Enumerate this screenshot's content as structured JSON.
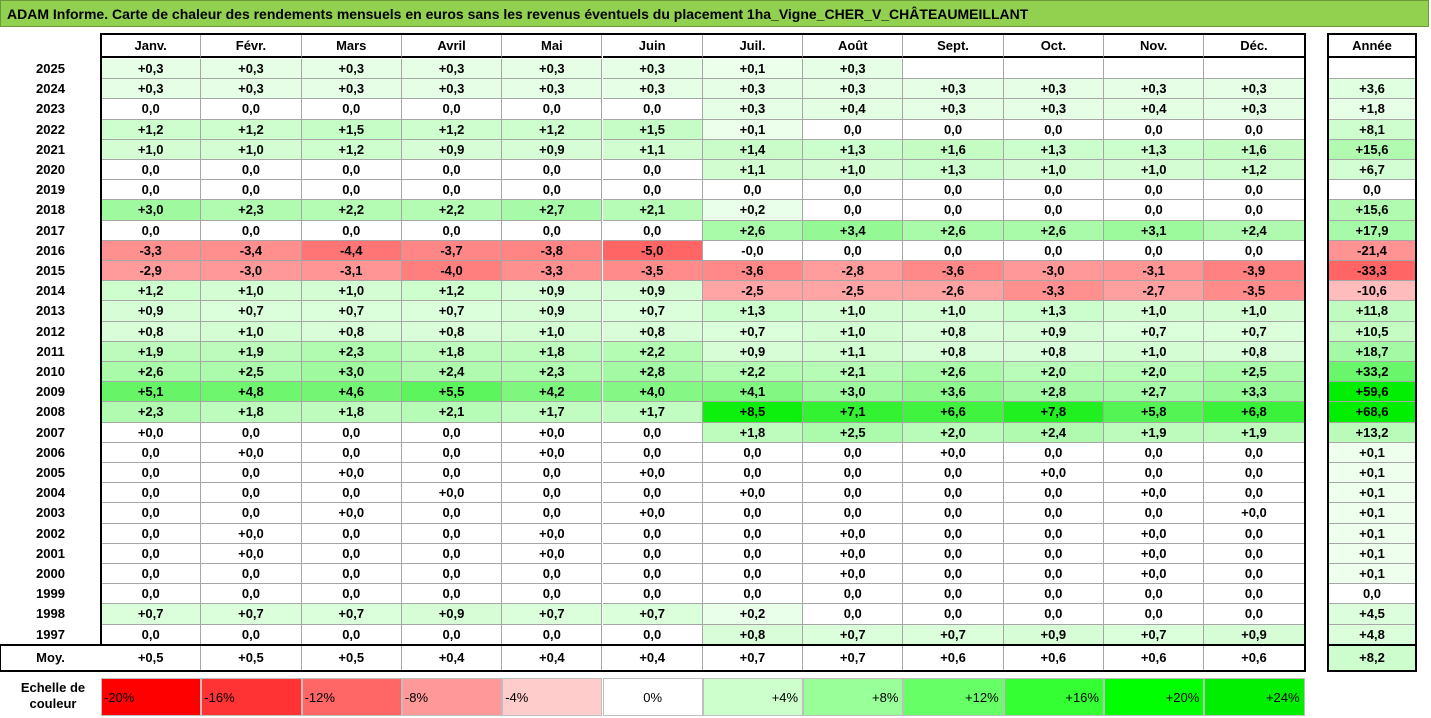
{
  "title": "ADAM Informe. Carte de chaleur des rendements mensuels en euros sans les revenus éventuels du placement 1ha_Vigne_CHER_V_CHÂTEAUMEILLANT",
  "chart_data": {
    "type": "heatmap",
    "columns": [
      "Janv.",
      "Févr.",
      "Mars",
      "Avril",
      "Mai",
      "Juin",
      "Juil.",
      "Août",
      "Sept.",
      "Oct.",
      "Nov.",
      "Déc."
    ],
    "annual_header": "Année",
    "rows": [
      {
        "year": "2025",
        "months": [
          "+0,3",
          "+0,3",
          "+0,3",
          "+0,3",
          "+0,3",
          "+0,3",
          "+0,1",
          "+0,3",
          "",
          "",
          "",
          ""
        ],
        "annual": ""
      },
      {
        "year": "2024",
        "months": [
          "+0,3",
          "+0,3",
          "+0,3",
          "+0,3",
          "+0,3",
          "+0,3",
          "+0,3",
          "+0,3",
          "+0,3",
          "+0,3",
          "+0,3",
          "+0,3"
        ],
        "annual": "+3,6"
      },
      {
        "year": "2023",
        "months": [
          "0,0",
          "0,0",
          "0,0",
          "0,0",
          "0,0",
          "0,0",
          "+0,3",
          "+0,4",
          "+0,3",
          "+0,3",
          "+0,4",
          "+0,3"
        ],
        "annual": "+1,8"
      },
      {
        "year": "2022",
        "months": [
          "+1,2",
          "+1,2",
          "+1,5",
          "+1,2",
          "+1,2",
          "+1,5",
          "+0,1",
          "0,0",
          "0,0",
          "0,0",
          "0,0",
          "0,0"
        ],
        "annual": "+8,1"
      },
      {
        "year": "2021",
        "months": [
          "+1,0",
          "+1,0",
          "+1,2",
          "+0,9",
          "+0,9",
          "+1,1",
          "+1,4",
          "+1,3",
          "+1,6",
          "+1,3",
          "+1,3",
          "+1,6"
        ],
        "annual": "+15,6"
      },
      {
        "year": "2020",
        "months": [
          "0,0",
          "0,0",
          "0,0",
          "0,0",
          "0,0",
          "0,0",
          "+1,1",
          "+1,0",
          "+1,3",
          "+1,0",
          "+1,0",
          "+1,2"
        ],
        "annual": "+6,7"
      },
      {
        "year": "2019",
        "months": [
          "0,0",
          "0,0",
          "0,0",
          "0,0",
          "0,0",
          "0,0",
          "0,0",
          "0,0",
          "0,0",
          "0,0",
          "0,0",
          "0,0"
        ],
        "annual": "0,0"
      },
      {
        "year": "2018",
        "months": [
          "+3,0",
          "+2,3",
          "+2,2",
          "+2,2",
          "+2,7",
          "+2,1",
          "+0,2",
          "0,0",
          "0,0",
          "0,0",
          "0,0",
          "0,0"
        ],
        "annual": "+15,6"
      },
      {
        "year": "2017",
        "months": [
          "0,0",
          "0,0",
          "0,0",
          "0,0",
          "0,0",
          "0,0",
          "+2,6",
          "+3,4",
          "+2,6",
          "+2,6",
          "+3,1",
          "+2,4"
        ],
        "annual": "+17,9"
      },
      {
        "year": "2016",
        "months": [
          "-3,3",
          "-3,4",
          "-4,4",
          "-3,7",
          "-3,8",
          "-5,0",
          "-0,0",
          "0,0",
          "0,0",
          "0,0",
          "0,0",
          "0,0"
        ],
        "annual": "-21,4"
      },
      {
        "year": "2015",
        "months": [
          "-2,9",
          "-3,0",
          "-3,1",
          "-4,0",
          "-3,3",
          "-3,5",
          "-3,6",
          "-2,8",
          "-3,6",
          "-3,0",
          "-3,1",
          "-3,9"
        ],
        "annual": "-33,3"
      },
      {
        "year": "2014",
        "months": [
          "+1,2",
          "+1,0",
          "+1,0",
          "+1,2",
          "+0,9",
          "+0,9",
          "-2,5",
          "-2,5",
          "-2,6",
          "-3,3",
          "-2,7",
          "-3,5"
        ],
        "annual": "-10,6"
      },
      {
        "year": "2013",
        "months": [
          "+0,9",
          "+0,7",
          "+0,7",
          "+0,7",
          "+0,9",
          "+0,7",
          "+1,3",
          "+1,0",
          "+1,0",
          "+1,3",
          "+1,0",
          "+1,0"
        ],
        "annual": "+11,8"
      },
      {
        "year": "2012",
        "months": [
          "+0,8",
          "+1,0",
          "+0,8",
          "+0,8",
          "+1,0",
          "+0,8",
          "+0,7",
          "+1,0",
          "+0,8",
          "+0,9",
          "+0,7",
          "+0,7"
        ],
        "annual": "+10,5"
      },
      {
        "year": "2011",
        "months": [
          "+1,9",
          "+1,9",
          "+2,3",
          "+1,8",
          "+1,8",
          "+2,2",
          "+0,9",
          "+1,1",
          "+0,8",
          "+0,8",
          "+1,0",
          "+0,8"
        ],
        "annual": "+18,7"
      },
      {
        "year": "2010",
        "months": [
          "+2,6",
          "+2,5",
          "+3,0",
          "+2,4",
          "+2,3",
          "+2,8",
          "+2,2",
          "+2,1",
          "+2,6",
          "+2,0",
          "+2,0",
          "+2,5"
        ],
        "annual": "+33,2"
      },
      {
        "year": "2009",
        "months": [
          "+5,1",
          "+4,8",
          "+4,6",
          "+5,5",
          "+4,2",
          "+4,0",
          "+4,1",
          "+3,0",
          "+3,6",
          "+2,8",
          "+2,7",
          "+3,3"
        ],
        "annual": "+59,6"
      },
      {
        "year": "2008",
        "months": [
          "+2,3",
          "+1,8",
          "+1,8",
          "+2,1",
          "+1,7",
          "+1,7",
          "+8,5",
          "+7,1",
          "+6,6",
          "+7,8",
          "+5,8",
          "+6,8"
        ],
        "annual": "+68,6"
      },
      {
        "year": "2007",
        "months": [
          "+0,0",
          "0,0",
          "0,0",
          "0,0",
          "+0,0",
          "0,0",
          "+1,8",
          "+2,5",
          "+2,0",
          "+2,4",
          "+1,9",
          "+1,9"
        ],
        "annual": "+13,2"
      },
      {
        "year": "2006",
        "months": [
          "0,0",
          "+0,0",
          "0,0",
          "0,0",
          "+0,0",
          "0,0",
          "0,0",
          "0,0",
          "+0,0",
          "0,0",
          "0,0",
          "0,0"
        ],
        "annual": "+0,1"
      },
      {
        "year": "2005",
        "months": [
          "0,0",
          "0,0",
          "+0,0",
          "0,0",
          "0,0",
          "+0,0",
          "0,0",
          "0,0",
          "0,0",
          "+0,0",
          "0,0",
          "0,0"
        ],
        "annual": "+0,1"
      },
      {
        "year": "2004",
        "months": [
          "0,0",
          "0,0",
          "0,0",
          "+0,0",
          "0,0",
          "0,0",
          "+0,0",
          "0,0",
          "0,0",
          "0,0",
          "+0,0",
          "0,0"
        ],
        "annual": "+0,1"
      },
      {
        "year": "2003",
        "months": [
          "0,0",
          "0,0",
          "+0,0",
          "0,0",
          "0,0",
          "+0,0",
          "0,0",
          "0,0",
          "0,0",
          "0,0",
          "0,0",
          "+0,0"
        ],
        "annual": "+0,1"
      },
      {
        "year": "2002",
        "months": [
          "0,0",
          "+0,0",
          "0,0",
          "0,0",
          "+0,0",
          "0,0",
          "0,0",
          "+0,0",
          "0,0",
          "0,0",
          "+0,0",
          "0,0"
        ],
        "annual": "+0,1"
      },
      {
        "year": "2001",
        "months": [
          "0,0",
          "+0,0",
          "0,0",
          "0,0",
          "+0,0",
          "0,0",
          "0,0",
          "+0,0",
          "0,0",
          "0,0",
          "+0,0",
          "0,0"
        ],
        "annual": "+0,1"
      },
      {
        "year": "2000",
        "months": [
          "0,0",
          "0,0",
          "0,0",
          "0,0",
          "0,0",
          "0,0",
          "0,0",
          "+0,0",
          "0,0",
          "0,0",
          "+0,0",
          "0,0"
        ],
        "annual": "+0,1"
      },
      {
        "year": "1999",
        "months": [
          "0,0",
          "0,0",
          "0,0",
          "0,0",
          "0,0",
          "0,0",
          "0,0",
          "0,0",
          "0,0",
          "0,0",
          "0,0",
          "0,0"
        ],
        "annual": "0,0"
      },
      {
        "year": "1998",
        "months": [
          "+0,7",
          "+0,7",
          "+0,7",
          "+0,9",
          "+0,7",
          "+0,7",
          "+0,2",
          "0,0",
          "0,0",
          "0,0",
          "0,0",
          "0,0"
        ],
        "annual": "+4,5"
      },
      {
        "year": "1997",
        "months": [
          "0,0",
          "0,0",
          "0,0",
          "0,0",
          "0,0",
          "0,0",
          "+0,8",
          "+0,7",
          "+0,7",
          "+0,9",
          "+0,7",
          "+0,9"
        ],
        "annual": "+4,8"
      }
    ],
    "average": {
      "label": "Moy.",
      "months": [
        "+0,5",
        "+0,5",
        "+0,5",
        "+0,4",
        "+0,4",
        "+0,4",
        "+0,7",
        "+0,7",
        "+0,6",
        "+0,6",
        "+0,6",
        "+0,6"
      ],
      "annual": "+8,2"
    },
    "scale": {
      "label": "Echelle de couleur",
      "stops": [
        {
          "text": "-20%",
          "color": "#ff0000"
        },
        {
          "text": "-16%",
          "color": "#ff3333"
        },
        {
          "text": "-12%",
          "color": "#ff6666"
        },
        {
          "text": "-8%",
          "color": "#ff9999"
        },
        {
          "text": "-4%",
          "color": "#ffcccc"
        },
        {
          "text": "0%",
          "color": "#ffffff"
        },
        {
          "text": "+4%",
          "color": "#ccffcc"
        },
        {
          "text": "+8%",
          "color": "#99ff99"
        },
        {
          "text": "+12%",
          "color": "#66ff66"
        },
        {
          "text": "+16%",
          "color": "#33ff33"
        },
        {
          "text": "+20%",
          "color": "#00ff00"
        },
        {
          "text": "+24%",
          "color": "#00ee00"
        }
      ]
    }
  }
}
